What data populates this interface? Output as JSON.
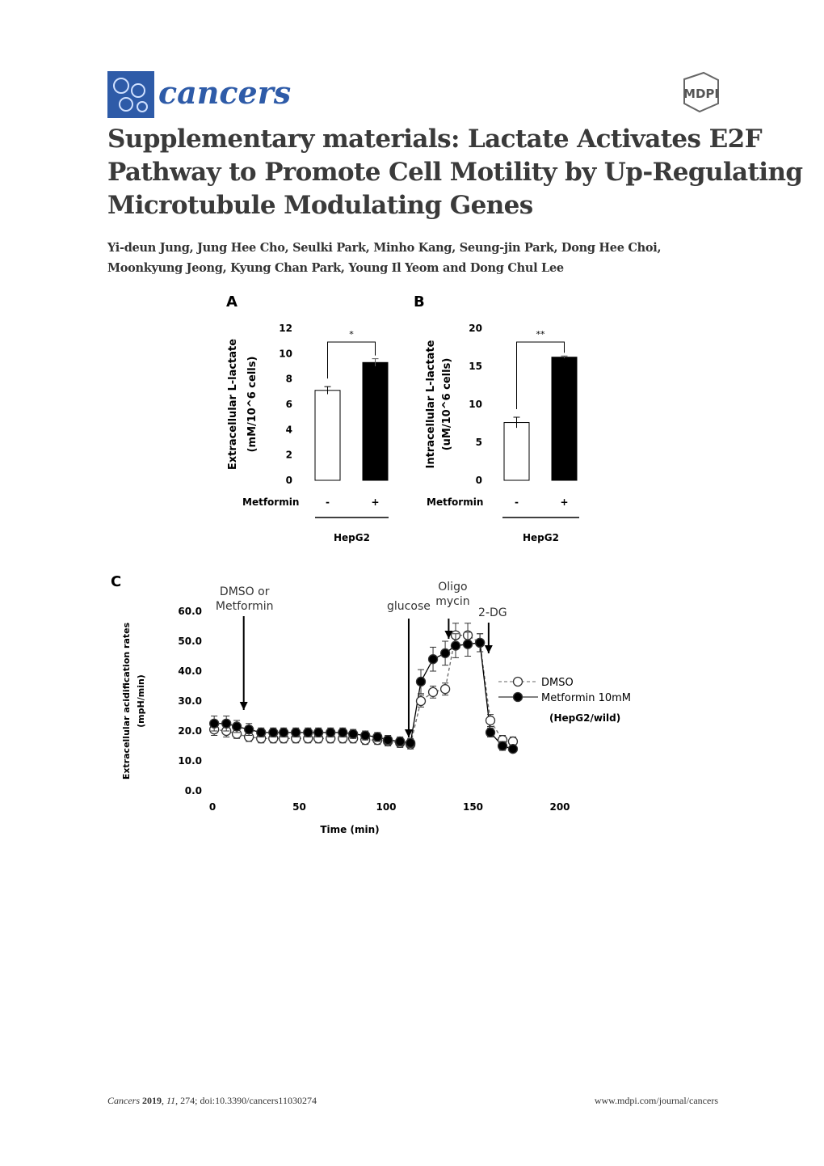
{
  "header": {
    "journal": "cancers",
    "publisher": "MDPI"
  },
  "title": [
    "Supplementary materials: Lactate Activates E2F",
    "Pathway to Promote Cell Motility by Up-Regulating",
    "Microtubule Modulating Genes"
  ],
  "authors": [
    "Yi-deun Jung, Jung Hee Cho, Seulki Park, Minho Kang, Seung-jin Park, Dong Hee Choi,",
    "Moonkyung Jeong, Kyung Chan Park, Young Il Yeom and Dong Chul Lee"
  ],
  "chart_data": [
    {
      "type": "bar",
      "panel": "A",
      "ylabel": [
        "Extracellular L-lactate",
        "(mM/10^6 cells)"
      ],
      "row_label": "Metformin",
      "group_label": "HepG2",
      "categories": [
        "-",
        "+"
      ],
      "values": [
        7.1,
        9.3
      ],
      "errors": [
        0.3,
        0.3
      ],
      "colors": [
        "#ffffff",
        "#000000"
      ],
      "significance": "*",
      "ylim": [
        0,
        12
      ],
      "yticks": [
        0,
        2,
        4,
        6,
        8,
        10,
        12
      ]
    },
    {
      "type": "bar",
      "panel": "B",
      "ylabel": [
        "Intracellular L-lactate",
        "(uM/10^6 cells)"
      ],
      "row_label": "Metformin",
      "group_label": "HepG2",
      "categories": [
        "-",
        "+"
      ],
      "values": [
        7.6,
        16.2
      ],
      "errors": [
        0.7,
        0.15
      ],
      "colors": [
        "#ffffff",
        "#000000"
      ],
      "significance": "**",
      "ylim": [
        0,
        20
      ],
      "yticks": [
        0,
        5,
        10,
        15,
        20
      ]
    },
    {
      "type": "line",
      "panel": "C",
      "xlabel": "Time (min)",
      "ylabel": [
        "Extracellular acidification rates",
        "(mpH/min)"
      ],
      "note": "(HepG2/wild)",
      "x": [
        1,
        8,
        14,
        21,
        28,
        35,
        41,
        48,
        55,
        61,
        68,
        75,
        81,
        88,
        95,
        101,
        108,
        114,
        120,
        127,
        134,
        140,
        147,
        154,
        160,
        167,
        173
      ],
      "series": [
        {
          "name": "DMSO",
          "color": "#666666",
          "values": [
            20.5,
            20,
            19,
            18,
            17.5,
            17.5,
            17.5,
            17.5,
            17.5,
            17.5,
            17.5,
            17.5,
            17.5,
            17,
            17,
            16.5,
            16,
            15.5,
            30,
            33,
            34,
            52,
            52,
            49.5,
            23.5,
            17,
            16.5
          ],
          "errors": [
            2,
            2,
            1.5,
            1.5,
            1.5,
            1.5,
            1.5,
            1.5,
            1.5,
            1.5,
            1.5,
            1.5,
            1.5,
            1.5,
            1.5,
            1.5,
            1.5,
            1.5,
            2,
            2,
            2,
            4,
            4,
            3,
            2,
            1.5,
            1.5
          ]
        },
        {
          "name": "Metformin 10mM",
          "color": "#000000",
          "values": [
            22.5,
            22.5,
            21.5,
            20.5,
            19.5,
            19.5,
            19.5,
            19.5,
            19.5,
            19.5,
            19.5,
            19.5,
            19,
            18.5,
            18,
            17,
            16.5,
            16,
            36.5,
            44,
            46,
            48.5,
            49,
            49.5,
            19.5,
            15,
            14
          ],
          "errors": [
            2.5,
            2.5,
            2,
            2,
            1.5,
            1.5,
            1.5,
            1.5,
            1.5,
            1.5,
            1.5,
            1.5,
            1.5,
            1.5,
            1.5,
            1.5,
            1.5,
            1.5,
            4,
            4,
            4,
            4,
            4,
            3,
            1.5,
            1.5,
            1
          ]
        }
      ],
      "annotations": [
        {
          "text": [
            "DMSO or",
            "Metformin"
          ],
          "x": 18
        },
        {
          "text": [
            "glucose"
          ],
          "x": 113
        },
        {
          "text": [
            "Oligo",
            "mycin"
          ],
          "x": 136
        },
        {
          "text": [
            "2-DG"
          ],
          "x": 159
        }
      ],
      "xlim": [
        0,
        200
      ],
      "xticks": [
        0,
        50,
        100,
        150,
        200
      ],
      "ylim": [
        0,
        60
      ],
      "yticks": [
        {
          "value": 0,
          "label": "0.0"
        },
        {
          "value": 10,
          "label": "10.0"
        },
        {
          "value": 20,
          "label": "20.0"
        },
        {
          "value": 30,
          "label": "30.0"
        },
        {
          "value": 40,
          "label": "40.0"
        },
        {
          "value": 50,
          "label": "50.0"
        },
        {
          "value": 60,
          "label": "60.0"
        }
      ]
    }
  ],
  "footer": {
    "citation": [
      "Cancers ",
      "2019",
      ", ",
      "11",
      ", 274; doi:10.3390/cancers11030274"
    ],
    "url": "www.mdpi.com/journal/cancers"
  }
}
